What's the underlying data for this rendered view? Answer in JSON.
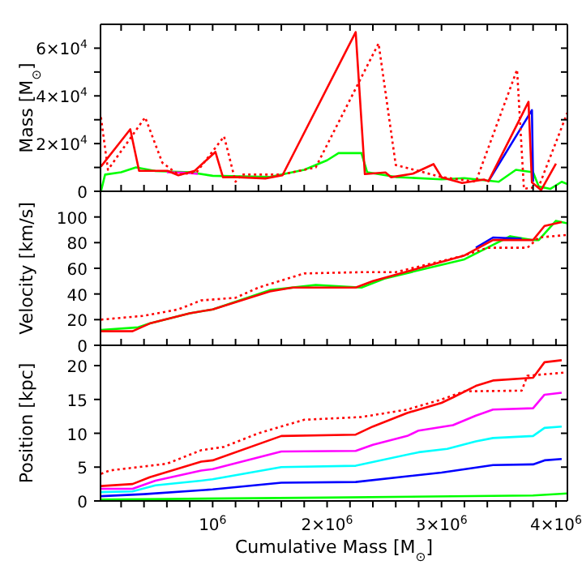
{
  "chart_data": [
    {
      "type": "line",
      "ylabel": "Mass [M$_{⊙}$]",
      "tick_labels": "y",
      "grid": false,
      "marker": "none",
      "xlim": [
        20000,
        4100000
      ],
      "ylim": [
        0,
        70000
      ],
      "xticks": [
        200000,
        400000,
        600000,
        800000,
        1000000,
        1200000,
        1400000,
        1600000,
        1800000,
        2000000,
        2200000,
        2400000,
        2600000,
        2800000,
        3000000,
        3200000,
        3400000,
        3600000,
        3800000,
        4000000
      ],
      "yticks": [
        0,
        {
          "value": 10000,
          "label": null
        },
        {
          "value": 20000,
          "label": "2×10$^{4}$"
        },
        {
          "value": 30000,
          "label": null
        },
        {
          "value": 40000,
          "label": "4×10$^{4}$"
        },
        {
          "value": 50000,
          "label": null
        },
        {
          "value": 60000,
          "label": "6×10$^{4}$"
        }
      ],
      "series": [
        {
          "color": "#00ff00",
          "x": [
            24000,
            60000,
            200000,
            330000,
            500000,
            800000,
            1000000,
            1500000,
            1800000,
            2000000,
            2100000,
            2300000,
            2350000,
            2600000,
            3000000,
            3200000,
            3500000,
            3650000,
            3800000,
            3850000,
            3950000,
            4050000,
            4100000
          ],
          "values": [
            0,
            7000,
            8000,
            10000,
            8500,
            8000,
            6500,
            6000,
            9000,
            13000,
            16000,
            16000,
            8000,
            6000,
            5000,
            5500,
            4000,
            9000,
            8000,
            2000,
            1000,
            4000,
            3000
          ]
        },
        {
          "color": "#0000ff",
          "x": [
            3410000,
            3790000,
            3800000
          ],
          "values": [
            4200,
            34000,
            4000
          ]
        },
        {
          "color": "#ff00ff",
          "x": [
            600000,
            750000,
            870000
          ],
          "values": [
            8000,
            7800,
            7300
          ]
        },
        {
          "color": "#ff0000",
          "line_style": "dotted",
          "x": [
            24000,
            85000,
            410000,
            560000,
            700000,
            860000,
            1100000,
            1200000,
            1250000,
            1600000,
            1900000,
            2450000,
            2600000,
            3000000,
            3300000,
            3660000,
            3720000,
            3850000,
            4100000
          ],
          "values": [
            31000,
            9000,
            31000,
            12000,
            7000,
            8000,
            23000,
            4000,
            7000,
            7000,
            10000,
            62000,
            11000,
            6000,
            4000,
            51000,
            1000,
            2000,
            33000
          ]
        },
        {
          "color": "#ff0000",
          "x": [
            24000,
            280000,
            357000,
            606000,
            700000,
            843000,
            1024000,
            1090000,
            1220000,
            1460000,
            1610000,
            2250000,
            2330000,
            2510000,
            2560000,
            2750000,
            2930000,
            3000000,
            3180000,
            3370000,
            3410000,
            3760000,
            3790000,
            3870000,
            4000000
          ],
          "values": [
            10400,
            26000,
            8600,
            8600,
            6700,
            8600,
            16500,
            5900,
            5900,
            5400,
            6700,
            66700,
            7200,
            7900,
            5900,
            7400,
            11400,
            5900,
            3500,
            4900,
            4200,
            37500,
            3700,
            500,
            11600
          ]
        }
      ]
    },
    {
      "type": "line",
      "ylabel": "Velocity [km/s]",
      "tick_labels": "y",
      "grid": false,
      "marker": "none",
      "xlim": [
        20000,
        4100000
      ],
      "ylim": [
        0,
        120
      ],
      "xticks": [
        200000,
        400000,
        600000,
        800000,
        1000000,
        1200000,
        1400000,
        1600000,
        1800000,
        2000000,
        2200000,
        2400000,
        2600000,
        2800000,
        3000000,
        3200000,
        3400000,
        3600000,
        3800000,
        4000000
      ],
      "yticks": [
        0,
        20,
        40,
        60,
        80,
        100
      ],
      "series": [
        {
          "color": "#00ff00",
          "x": [
            24000,
            350000,
            450000,
            800000,
            1000000,
            1500000,
            1900000,
            2300000,
            2500000,
            3200000,
            3600000,
            3800000,
            3850000,
            4000000,
            4100000
          ],
          "values": [
            12,
            14,
            17,
            25,
            28,
            43,
            47,
            45,
            52,
            67,
            85,
            82,
            82,
            97,
            95
          ]
        },
        {
          "color": "#0000ff",
          "x": [
            3300000,
            3450000,
            3700000
          ],
          "values": [
            76,
            84,
            83
          ]
        },
        {
          "color": "#ff0000",
          "line_style": "dotted",
          "x": [
            24000,
            400000,
            700000,
            900000,
            1200000,
            1400000,
            1800000,
            2300000,
            2600000,
            3200000,
            3400000,
            3750000,
            3850000,
            4100000
          ],
          "values": [
            20,
            23,
            28,
            35,
            37,
            45,
            56,
            57,
            57,
            70,
            76,
            76,
            84,
            86
          ]
        },
        {
          "color": "#ff0000",
          "x": [
            24000,
            300000,
            450000,
            800000,
            1000000,
            1500000,
            1700000,
            2250000,
            2400000,
            2800000,
            3200000,
            3450000,
            3800000,
            3900000,
            4050000
          ],
          "values": [
            11,
            11,
            17,
            25,
            28,
            42,
            45,
            45,
            50,
            60,
            70,
            82,
            82,
            93,
            96
          ]
        }
      ]
    },
    {
      "type": "line",
      "ylabel": "Position [kpc]",
      "xlabel": "Cumulative Mass [M$_{⊙}$]",
      "grid": false,
      "marker": "none",
      "xlim": [
        20000,
        4100000
      ],
      "ylim": [
        0,
        23
      ],
      "xticks": [
        {
          "value": 200000,
          "label": null
        },
        {
          "value": 400000,
          "label": null
        },
        {
          "value": 600000,
          "label": null
        },
        {
          "value": 800000,
          "label": null
        },
        {
          "value": 1000000,
          "label": "10$^{6}$"
        },
        {
          "value": 1200000,
          "label": null
        },
        {
          "value": 1400000,
          "label": null
        },
        {
          "value": 1600000,
          "label": null
        },
        {
          "value": 1800000,
          "label": null
        },
        {
          "value": 2000000,
          "label": "2×10$^{6}$"
        },
        {
          "value": 2200000,
          "label": null
        },
        {
          "value": 2400000,
          "label": null
        },
        {
          "value": 2600000,
          "label": null
        },
        {
          "value": 2800000,
          "label": null
        },
        {
          "value": 3000000,
          "label": "3×10$^{6}$"
        },
        {
          "value": 3200000,
          "label": null
        },
        {
          "value": 3400000,
          "label": null
        },
        {
          "value": 3600000,
          "label": null
        },
        {
          "value": 3800000,
          "label": null
        },
        {
          "value": 4000000,
          "label": "4×10$^{6}$"
        }
      ],
      "yticks": [
        0,
        5,
        10,
        15,
        20
      ],
      "series": [
        {
          "color": "#00ff00",
          "x": [
            24000,
            2000000,
            3800000,
            4100000
          ],
          "values": [
            0.2,
            0.5,
            0.8,
            1.1
          ]
        },
        {
          "color": "#0000ff",
          "x": [
            24000,
            400000,
            1000000,
            1600000,
            2250000,
            3000000,
            3450000,
            3800000,
            3900000,
            4050000
          ],
          "values": [
            0.7,
            1,
            1.7,
            2.7,
            2.8,
            4.2,
            5.3,
            5.4,
            6,
            6.2
          ]
        },
        {
          "color": "#00ffff",
          "x": [
            24000,
            300000,
            500000,
            900000,
            1000000,
            1600000,
            2250000,
            2800000,
            3050000,
            3300000,
            3450000,
            3800000,
            3900000,
            4050000
          ],
          "values": [
            1.3,
            1.4,
            2.3,
            3,
            3.2,
            5,
            5.2,
            7.2,
            7.7,
            8.8,
            9.3,
            9.6,
            10.8,
            11
          ]
        },
        {
          "color": "#ff00ff",
          "x": [
            24000,
            300000,
            500000,
            900000,
            1000000,
            1600000,
            2250000,
            2400000,
            2700000,
            2800000,
            3100000,
            3300000,
            3450000,
            3800000,
            3900000,
            4050000
          ],
          "values": [
            1.8,
            1.8,
            3,
            4.5,
            4.7,
            7.3,
            7.4,
            8.3,
            9.6,
            10.4,
            11.2,
            12.6,
            13.5,
            13.7,
            15.7,
            16
          ]
        },
        {
          "color": "#ff0000",
          "x": [
            24000,
            300000,
            450000,
            900000,
            1000000,
            1600000,
            2250000,
            2400000,
            2700000,
            3000000,
            3100000,
            3300000,
            3450000,
            3800000,
            3900000,
            4050000
          ],
          "values": [
            2.2,
            2.5,
            3.5,
            5.8,
            6,
            9.6,
            9.8,
            11,
            13,
            14.5,
            15.3,
            17,
            17.8,
            18.2,
            20.5,
            20.8
          ]
        },
        {
          "color": "#ff0000",
          "line_style": "dotted",
          "x": [
            24000,
            100000,
            600000,
            900000,
            1100000,
            1400000,
            1800000,
            2300000,
            2700000,
            3000000,
            3200000,
            3700000,
            3750000,
            4100000
          ],
          "values": [
            4,
            4.5,
            5.5,
            7.5,
            8,
            10,
            12,
            12.4,
            13.5,
            15,
            16.2,
            16.3,
            18.5,
            19
          ]
        }
      ]
    }
  ]
}
